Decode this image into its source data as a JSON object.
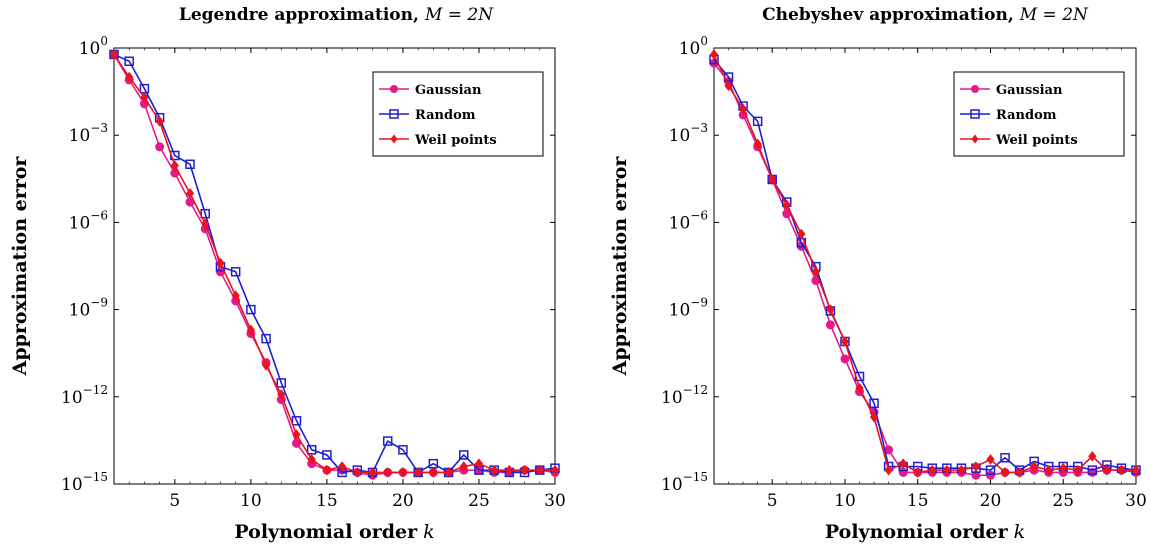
{
  "chart_data": [
    {
      "type": "line",
      "title": "Legendre approximation, M = 2N",
      "title_text": "Legendre approximation,",
      "title_math": "M = 2N",
      "xlabel": "Polynomial order k",
      "xlabel_text": "Polynomial order",
      "xlabel_math": "k",
      "ylabel": "Approximation error",
      "yscale": "log",
      "xlim": [
        1,
        30
      ],
      "ylim": [
        1e-15,
        1
      ],
      "xticks": [
        5,
        10,
        15,
        20,
        25,
        30
      ],
      "yticks": [
        {
          "base": "10",
          "exp": "0",
          "value": 1
        },
        {
          "base": "10",
          "exp": "−3",
          "value": 0.001
        },
        {
          "base": "10",
          "exp": "−6",
          "value": 1e-06
        },
        {
          "base": "10",
          "exp": "−9",
          "value": 1e-09
        },
        {
          "base": "10",
          "exp": "−12",
          "value": 1e-12
        },
        {
          "base": "10",
          "exp": "−15",
          "value": 1e-15
        }
      ],
      "grid": false,
      "legend_position": "top-right",
      "x": [
        1,
        2,
        3,
        4,
        5,
        6,
        7,
        8,
        9,
        10,
        11,
        12,
        13,
        14,
        15,
        16,
        17,
        18,
        19,
        20,
        21,
        22,
        23,
        24,
        25,
        26,
        27,
        28,
        29,
        30
      ],
      "series": [
        {
          "name": "Gaussian",
          "color": "#e6198c",
          "marker": "circle",
          "values": [
            0.6,
            0.08,
            0.012,
            0.0004,
            5e-05,
            5e-06,
            6e-07,
            2e-08,
            2e-09,
            1.5e-10,
            1.5e-11,
            8e-13,
            2.5e-14,
            5e-15,
            3e-15,
            3e-15,
            2.5e-15,
            2e-15,
            2.5e-15,
            2.5e-15,
            2.5e-15,
            2.5e-15,
            2.5e-15,
            3e-15,
            3e-15,
            2.5e-15,
            2.5e-15,
            3e-15,
            3e-15,
            2.5e-15
          ]
        },
        {
          "name": "Random",
          "color": "#1f1fd2",
          "marker": "square",
          "values": [
            0.6,
            0.35,
            0.04,
            0.004,
            0.0002,
            0.0001,
            2e-06,
            3e-08,
            2e-08,
            1e-09,
            1e-10,
            3e-12,
            1.5e-13,
            1.5e-14,
            1e-14,
            2.5e-15,
            3e-15,
            2.5e-15,
            3e-14,
            1.5e-14,
            2.5e-15,
            5e-15,
            2.5e-15,
            1e-14,
            3e-15,
            3e-15,
            2.5e-15,
            2.5e-15,
            3e-15,
            3.5e-15
          ]
        },
        {
          "name": "Weil points",
          "color": "#e8141e",
          "marker": "diamond",
          "values": [
            0.6,
            0.1,
            0.02,
            0.003,
            9e-05,
            1e-05,
            9e-07,
            4e-08,
            3e-09,
            2e-10,
            1.2e-11,
            1.2e-12,
            5e-14,
            7e-15,
            3e-15,
            4e-15,
            2.5e-15,
            2.5e-15,
            2.5e-15,
            2.5e-15,
            2.5e-15,
            2.5e-15,
            2.5e-15,
            4e-15,
            5e-15,
            3e-15,
            3e-15,
            3e-15,
            3e-15,
            3e-15
          ]
        }
      ]
    },
    {
      "type": "line",
      "title": "Chebyshev approximation, M = 2N",
      "title_text": "Chebyshev approximation,",
      "title_math": "M = 2N",
      "xlabel": "Polynomial order k",
      "xlabel_text": "Polynomial order",
      "xlabel_math": "k",
      "ylabel": "Approximation error",
      "yscale": "log",
      "xlim": [
        1,
        30
      ],
      "ylim": [
        1e-15,
        1
      ],
      "xticks": [
        5,
        10,
        15,
        20,
        25,
        30
      ],
      "yticks": [
        {
          "base": "10",
          "exp": "0",
          "value": 1
        },
        {
          "base": "10",
          "exp": "−3",
          "value": 0.001
        },
        {
          "base": "10",
          "exp": "−6",
          "value": 1e-06
        },
        {
          "base": "10",
          "exp": "−9",
          "value": 1e-09
        },
        {
          "base": "10",
          "exp": "−12",
          "value": 1e-12
        },
        {
          "base": "10",
          "exp": "−15",
          "value": 1e-15
        }
      ],
      "grid": false,
      "legend_position": "top-right",
      "x": [
        1,
        2,
        3,
        4,
        5,
        6,
        7,
        8,
        9,
        10,
        11,
        12,
        13,
        14,
        15,
        16,
        17,
        18,
        19,
        20,
        21,
        22,
        23,
        24,
        25,
        26,
        27,
        28,
        29,
        30
      ],
      "series": [
        {
          "name": "Gaussian",
          "color": "#e6198c",
          "marker": "circle",
          "values": [
            0.3,
            0.07,
            0.005,
            0.0004,
            3e-05,
            2e-06,
            1.5e-07,
            1e-08,
            3e-10,
            2e-11,
            1.5e-12,
            3e-13,
            1.5e-14,
            2.5e-15,
            2.5e-15,
            2.5e-15,
            2.5e-15,
            2.5e-15,
            2e-15,
            2e-15,
            2.5e-15,
            2.5e-15,
            3e-15,
            2.5e-15,
            2.5e-15,
            2.5e-15,
            2.5e-15,
            3e-15,
            3e-15,
            2.5e-15
          ]
        },
        {
          "name": "Random",
          "color": "#1f1fd2",
          "marker": "square",
          "values": [
            0.4,
            0.1,
            0.01,
            0.003,
            3e-05,
            5e-06,
            2e-07,
            3e-08,
            9e-10,
            8e-11,
            5e-12,
            6e-13,
            4e-15,
            4e-15,
            4e-15,
            3.5e-15,
            3.5e-15,
            3.5e-15,
            3.5e-15,
            3e-15,
            8e-15,
            3e-15,
            6e-15,
            4e-15,
            4e-15,
            4e-15,
            3e-15,
            4.5e-15,
            3.5e-15,
            3e-15
          ]
        },
        {
          "name": "Weil points",
          "color": "#e8141e",
          "marker": "diamond",
          "values": [
            0.6,
            0.05,
            0.008,
            0.0005,
            3e-05,
            4e-06,
            4e-07,
            2e-08,
            1e-09,
            8e-11,
            2e-12,
            2e-13,
            3e-15,
            5e-15,
            2.5e-15,
            3e-15,
            3e-15,
            3e-15,
            4e-15,
            7e-15,
            2.5e-15,
            2.5e-15,
            4e-15,
            3e-15,
            3.5e-15,
            3e-15,
            9e-15,
            3e-15,
            3e-15,
            3e-15
          ]
        }
      ]
    }
  ]
}
